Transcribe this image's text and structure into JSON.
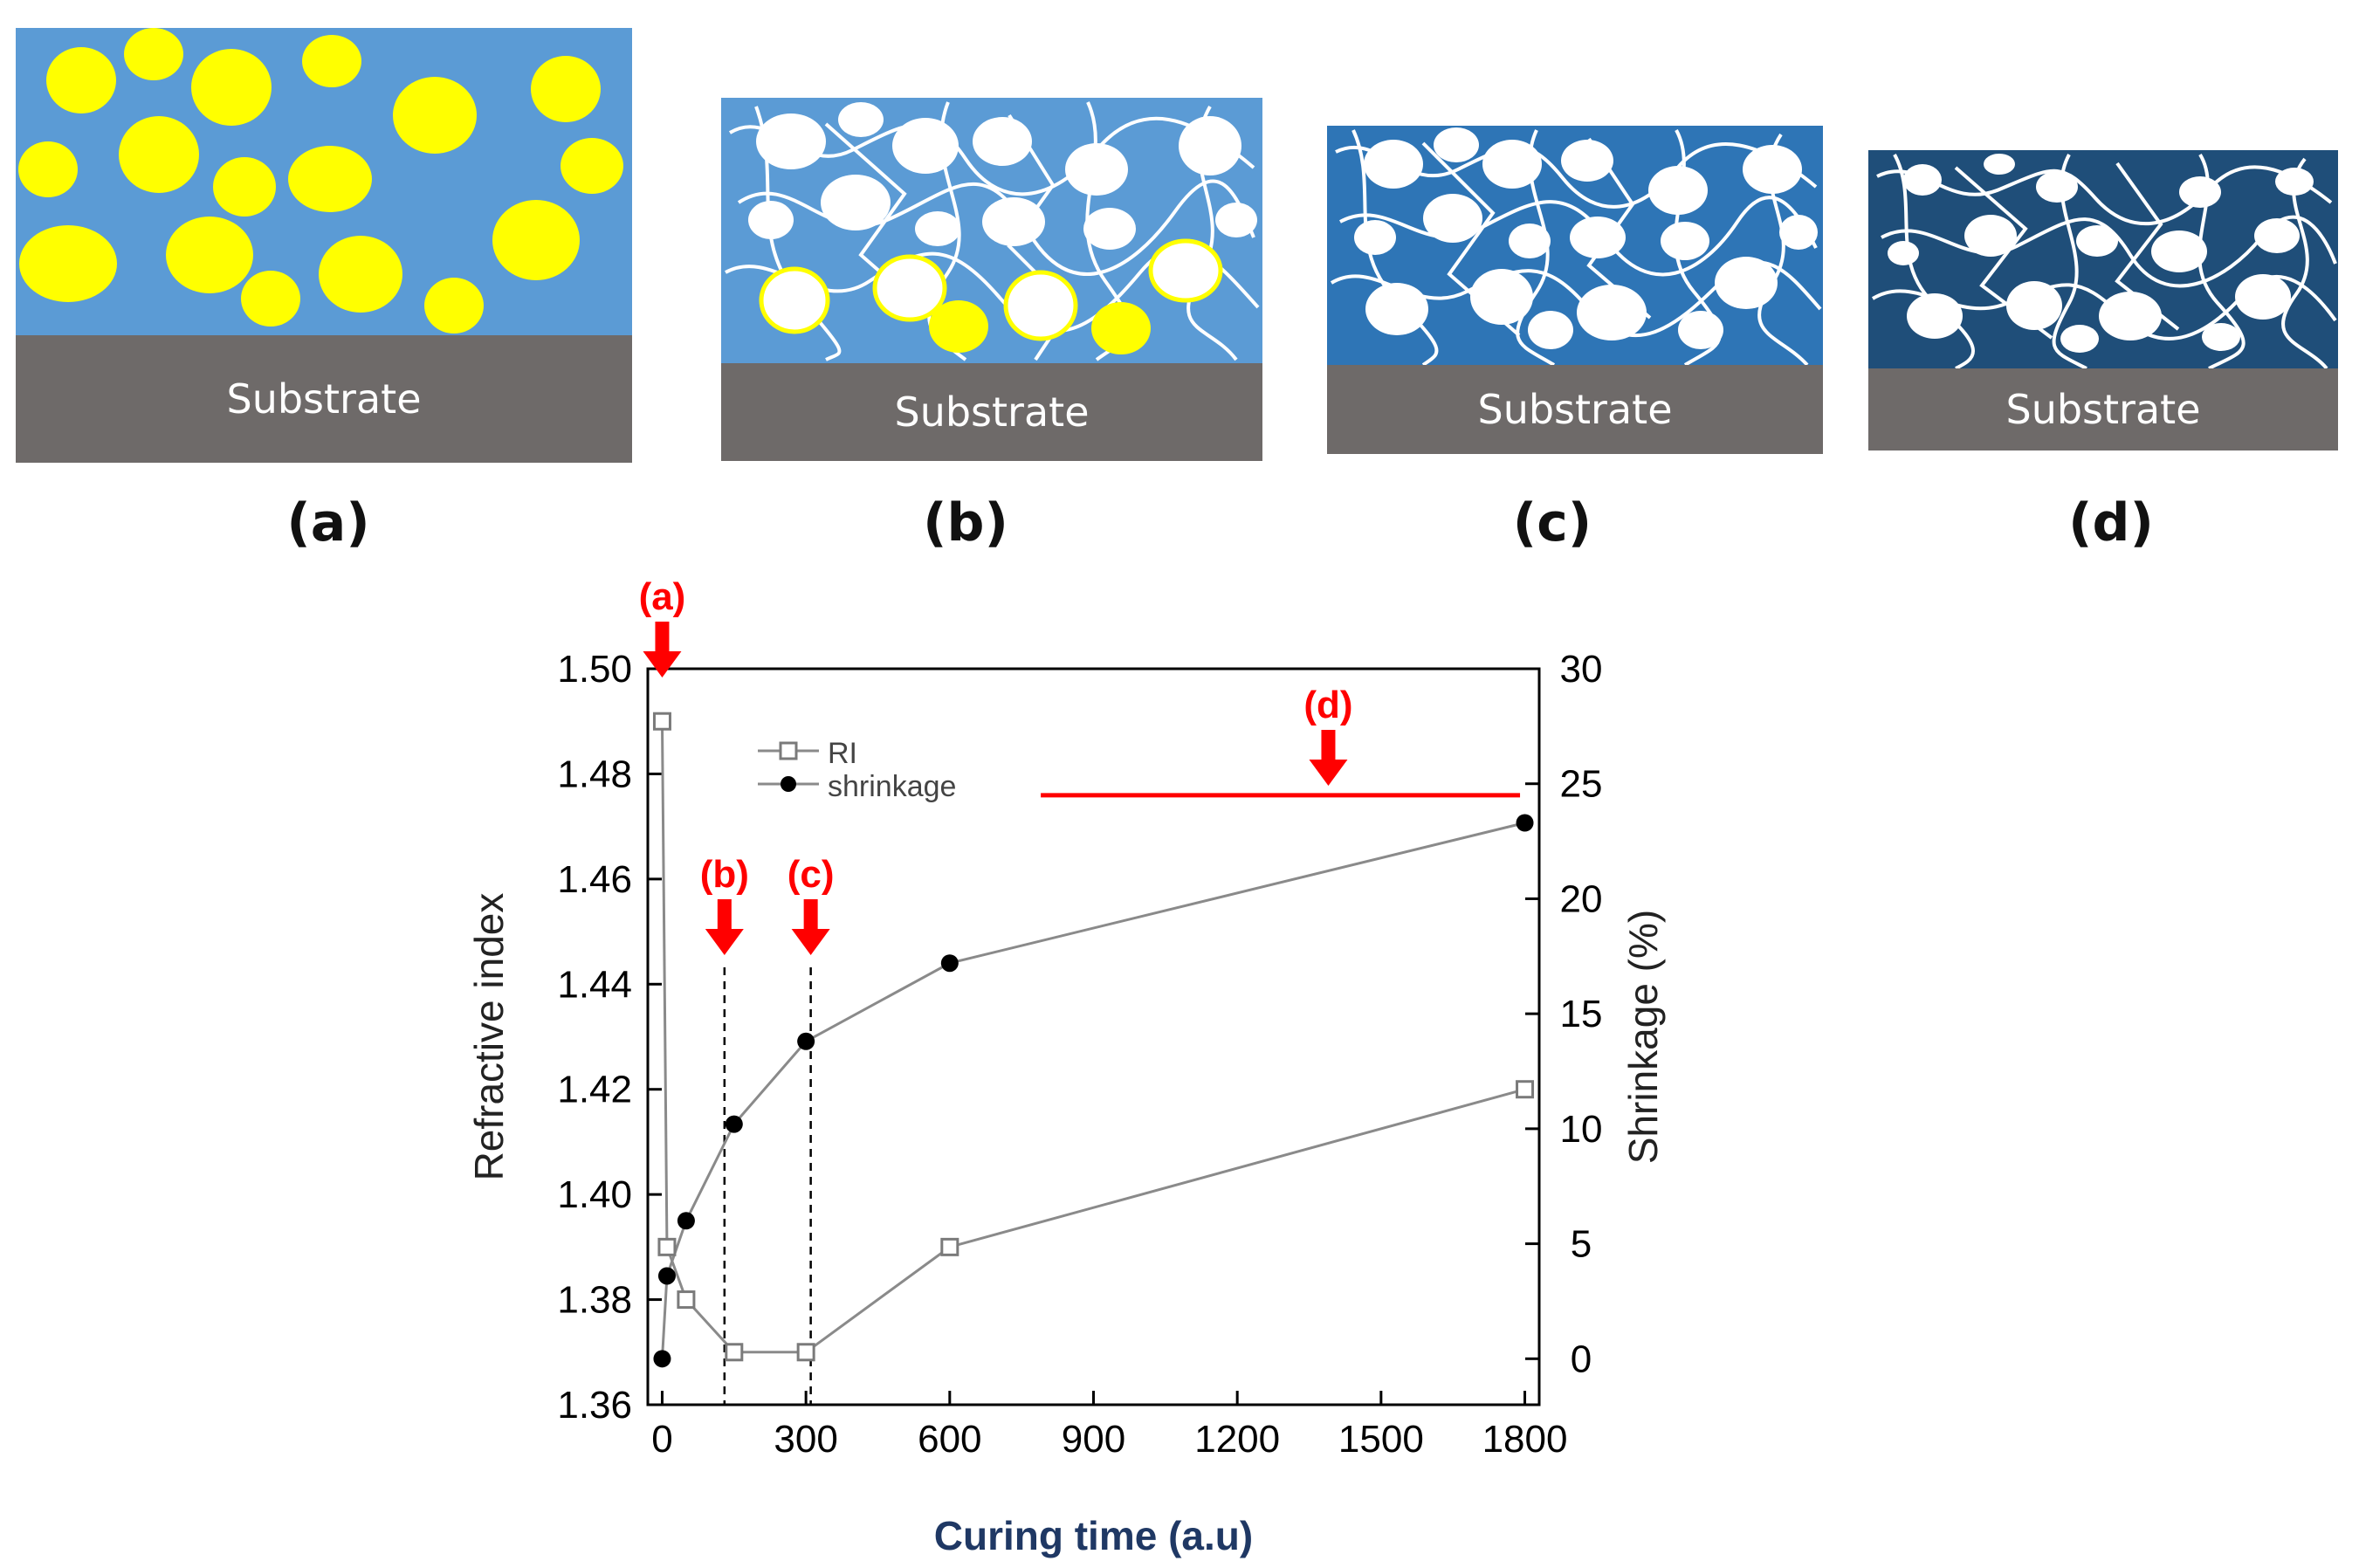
{
  "panels": [
    {
      "id": "a",
      "label": "(a)",
      "substrate": "Substrate"
    },
    {
      "id": "b",
      "label": "(b)",
      "substrate": "Substrate"
    },
    {
      "id": "c",
      "label": "(c)",
      "substrate": "Substrate"
    },
    {
      "id": "d",
      "label": "(d)",
      "substrate": "Substrate"
    }
  ],
  "colors": {
    "film_a": "#5b9bd5",
    "film_b": "#5b9bd5",
    "film_c": "#2e75b6",
    "film_d": "#1f4e79",
    "particle_yellow": "#ffff00",
    "pore_white": "#ffffff",
    "substrate": "#6e6a69",
    "marker_red": "#ff0000",
    "xlabel_navy": "#1f3864"
  },
  "chart_data": {
    "type": "line",
    "xlabel": "Curing time (a.u)",
    "ylabel": "Refractive index",
    "y2label": "Shrinkage (%)",
    "xlim": [
      -30,
      1830
    ],
    "xticks": [
      0,
      300,
      600,
      900,
      1200,
      1500,
      1800
    ],
    "ylim": [
      1.36,
      1.5
    ],
    "yticks": [
      "1.36",
      "1.38",
      "1.40",
      "1.42",
      "1.44",
      "1.46",
      "1.48",
      "1.50"
    ],
    "y2lim": [
      -2,
      30
    ],
    "y2ticks": [
      0,
      5,
      10,
      15,
      20,
      25,
      30
    ],
    "legend": [
      "RI",
      "shrinkage"
    ],
    "series": [
      {
        "name": "RI",
        "axis": "left",
        "marker": "open-square",
        "x": [
          0,
          10,
          50,
          150,
          300,
          600,
          1800
        ],
        "y": [
          1.49,
          1.39,
          1.38,
          1.37,
          1.37,
          1.39,
          1.42
        ]
      },
      {
        "name": "shrinkage",
        "axis": "right",
        "marker": "filled-circle",
        "x": [
          0,
          10,
          50,
          150,
          300,
          600,
          1800
        ],
        "y": [
          0,
          3.6,
          6.0,
          10.2,
          13.8,
          17.2,
          23.3
        ]
      }
    ],
    "markers": [
      {
        "label": "(a)",
        "x": 0
      },
      {
        "label": "(b)",
        "x": 130
      },
      {
        "label": "(c)",
        "x": 310
      },
      {
        "label": "(d)",
        "x": 1390
      }
    ],
    "vlines": [
      130,
      310
    ],
    "hline": {
      "y2": 24.5,
      "x_from": 790,
      "x_to": 1790
    }
  }
}
